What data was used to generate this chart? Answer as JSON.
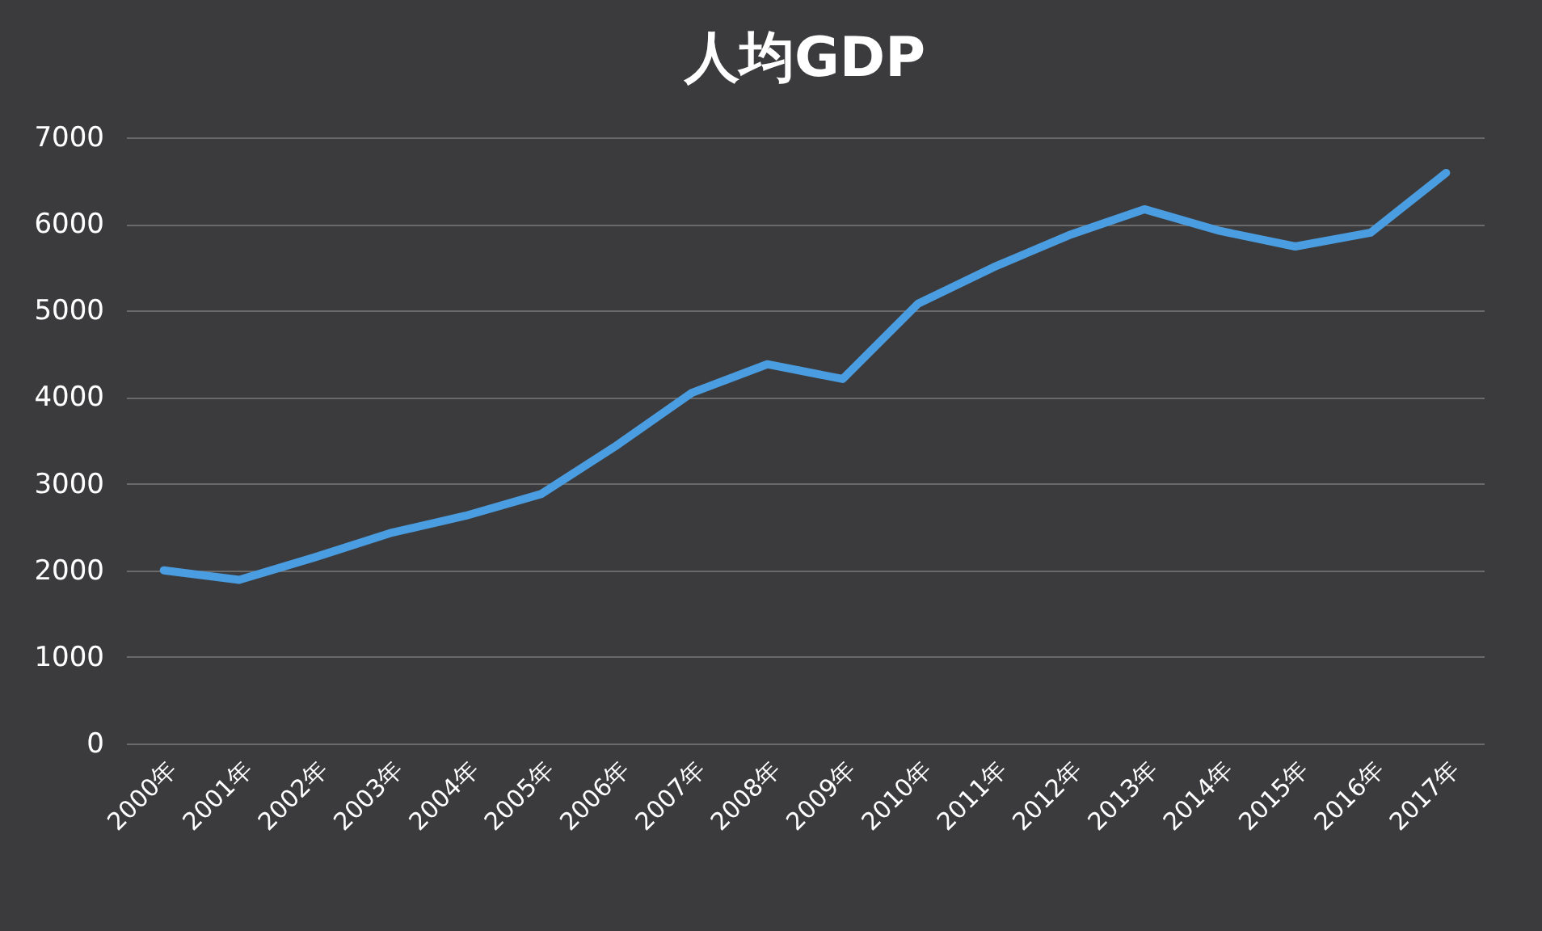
{
  "chart_data": {
    "type": "line",
    "title": "人均GDP",
    "categories": [
      "2000年",
      "2001年",
      "2002年",
      "2003年",
      "2004年",
      "2005年",
      "2006年",
      "2007年",
      "2008年",
      "2009年",
      "2010年",
      "2011年",
      "2012年",
      "2013年",
      "2014年",
      "2015年",
      "2016年",
      "2017年"
    ],
    "series": [
      {
        "color": "#4a9de0",
        "values": [
          2000,
          1890,
          2150,
          2430,
          2630,
          2880,
          3440,
          4050,
          4380,
          4210,
          5080,
          5500,
          5870,
          6170,
          5920,
          5740,
          5900,
          6590
        ]
      }
    ],
    "ylim": [
      0,
      7000
    ],
    "yticks": [
      0,
      1000,
      2000,
      3000,
      4000,
      5000,
      6000,
      7000
    ],
    "grid": "y",
    "legend": false,
    "marker": "none",
    "line_style": "solid"
  }
}
